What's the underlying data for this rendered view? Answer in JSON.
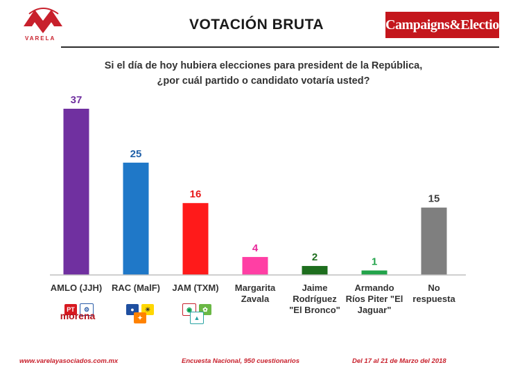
{
  "header": {
    "title": "VOTACIÓN BRUTA",
    "brand": "Campaigns&Elections",
    "logo_text": "VARELA"
  },
  "question": {
    "line1": "Si el día de hoy hubiera elecciones para president de la República,",
    "line2": "¿por cuál partido o candidato votaría usted?"
  },
  "chart_data": {
    "type": "bar",
    "title": "VOTACIÓN BRUTA",
    "categories": [
      "AMLO (JJH)",
      "RAC (MalF)",
      "JAM (TXM)",
      "Margarita Zavala",
      "Jaime Rodríguez \"El Bronco\"",
      "Armando Ríos Piter \"El Jaguar\"",
      "No respuesta"
    ],
    "category_lines": [
      [
        "AMLO (JJH)"
      ],
      [
        "RAC (MalF)"
      ],
      [
        "JAM (TXM)"
      ],
      [
        "Margarita",
        "Zavala"
      ],
      [
        "Jaime",
        "Rodríguez",
        "\"El Bronco\""
      ],
      [
        "Armando",
        "Ríos Piter \"El",
        "Jaguar\""
      ],
      [
        "No",
        "respuesta"
      ]
    ],
    "values": [
      37,
      25,
      16,
      4,
      2,
      1,
      15
    ],
    "colors": [
      "#7030a0",
      "#1f78c8",
      "#ff1a1a",
      "#ff3fa4",
      "#1e6e1e",
      "#22a34a",
      "#7f7f7f"
    ],
    "label_colors": [
      "#7030a0",
      "#1f5fa8",
      "#e8191a",
      "#e8279a",
      "#1e6e1e",
      "#22a34a",
      "#404040"
    ],
    "ylim": [
      0,
      37
    ],
    "xlabel": "",
    "ylabel": "",
    "grid": false,
    "legend": "none"
  },
  "party_logos": {
    "amlo_text": "morena",
    "amlo_pt": "PT"
  },
  "footer": {
    "website": "www.varelayasociados.com.mx",
    "survey": "Encuesta Nacional, 950 cuestionarios",
    "dates": "Del 17 al 21 de Marzo del 2018"
  }
}
